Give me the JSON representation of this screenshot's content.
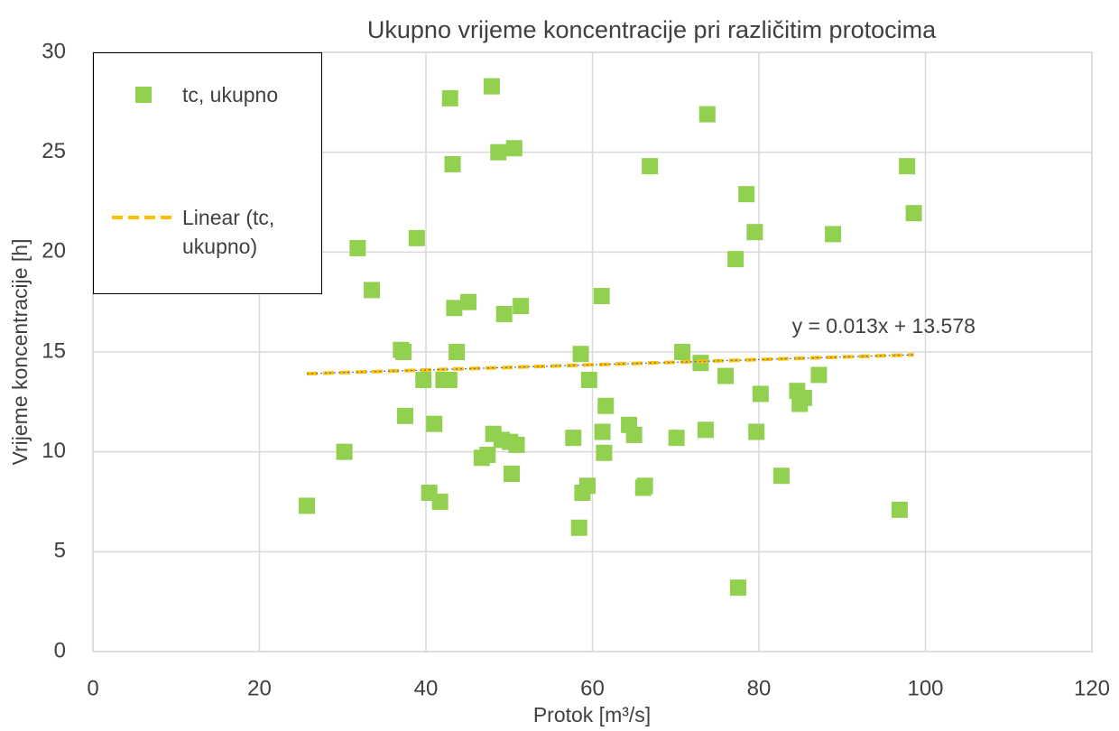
{
  "chart_data": {
    "type": "scatter",
    "title": "Ukupno vrijeme koncentracije pri različitim protocima",
    "x_label": "Protok [m³/s]",
    "y_label": "Vrijeme koncentracije [h]",
    "series": [
      {
        "name": "tc, ukupno",
        "color": "#92d050",
        "x": [
          25.7,
          30.2,
          31.8,
          33.5,
          37.0,
          37.3,
          37.5,
          38.9,
          39.7,
          40.4,
          41.0,
          41.7,
          42.1,
          42.8,
          42.9,
          43.2,
          43.4,
          43.7,
          45.1,
          46.7,
          47.4,
          47.9,
          48.1,
          48.7,
          49.1,
          49.4,
          50.1,
          50.3,
          50.6,
          50.9,
          51.4,
          57.7,
          58.4,
          58.6,
          58.8,
          59.4,
          59.6,
          61.1,
          61.2,
          61.4,
          61.6,
          64.4,
          65.0,
          66.1,
          66.3,
          66.9,
          70.1,
          70.8,
          73.0,
          73.6,
          73.8,
          76.0,
          77.2,
          77.5,
          78.5,
          79.5,
          79.7,
          80.2,
          82.7,
          84.6,
          84.9,
          85.4,
          87.2,
          88.9,
          96.9,
          97.8,
          98.6
        ],
        "values": [
          7.3,
          10.0,
          20.2,
          18.1,
          15.1,
          15.0,
          11.8,
          20.7,
          13.6,
          7.95,
          11.4,
          7.5,
          13.6,
          13.6,
          27.7,
          24.4,
          17.2,
          15.0,
          17.5,
          9.7,
          9.85,
          28.3,
          10.9,
          25.0,
          10.6,
          16.9,
          10.5,
          8.9,
          25.2,
          10.35,
          17.3,
          10.7,
          6.2,
          14.9,
          7.95,
          8.3,
          13.6,
          17.8,
          11.0,
          9.95,
          12.3,
          11.35,
          10.85,
          8.2,
          8.3,
          24.3,
          10.7,
          15.0,
          14.45,
          11.1,
          26.9,
          13.8,
          19.65,
          3.2,
          22.9,
          21.0,
          11.0,
          12.9,
          8.8,
          13.05,
          12.4,
          12.7,
          13.85,
          20.9,
          7.1,
          24.3,
          21.95
        ]
      }
    ],
    "trendline": {
      "name": "Linear (tc, ukupno)",
      "equation_label": "y = 0.013x + 13.578",
      "slope": 0.013,
      "intercept": 13.578,
      "color": "#ffc000"
    },
    "xlim": [
      0,
      120
    ],
    "xticks": [
      0,
      20,
      40,
      60,
      80,
      100,
      120
    ],
    "ylim": [
      0,
      30
    ],
    "yticks": [
      0,
      5,
      10,
      15,
      20,
      25,
      30
    ],
    "grid": true,
    "legend": "top-left"
  }
}
